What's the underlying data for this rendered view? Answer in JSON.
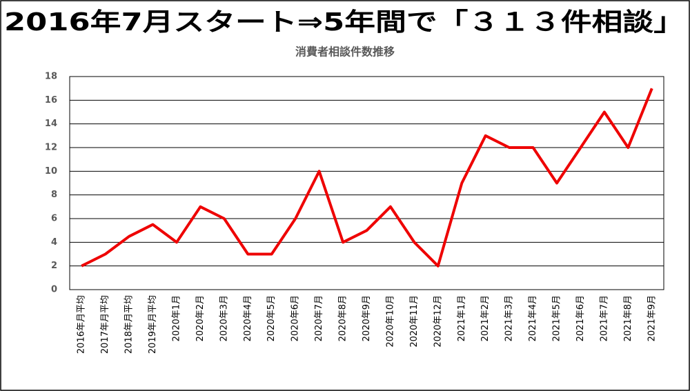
{
  "chart_data": {
    "type": "line",
    "title": "2016年7月スタート⇒5年間で「３１３件相談」",
    "subtitle": "消費者相談件数推移",
    "categories": [
      "2016年月平均",
      "2017年月平均",
      "2018年月平均",
      "2019年月平均",
      "2020年1月",
      "2020年2月",
      "2020年3月",
      "2020年4月",
      "2020年5月",
      "2020年6月",
      "2020年7月",
      "2020年8月",
      "2020年9月",
      "2020年10月",
      "2020年11月",
      "2020年12月",
      "2021年1月",
      "2021年2月",
      "2021年3月",
      "2021年4月",
      "2021年5月",
      "2021年6月",
      "2021年7月",
      "2021年8月",
      "2021年9月"
    ],
    "values": [
      2,
      3,
      4.5,
      5.5,
      4,
      7,
      6,
      3,
      3,
      6,
      10,
      4,
      5,
      7,
      4,
      2,
      9,
      13,
      12,
      12,
      9,
      12,
      15,
      12,
      17
    ],
    "color": "#ee0000",
    "ylim": [
      0,
      18
    ],
    "yticks": [
      0,
      2,
      4,
      6,
      8,
      10,
      12,
      14,
      16,
      18
    ],
    "grid": true
  }
}
